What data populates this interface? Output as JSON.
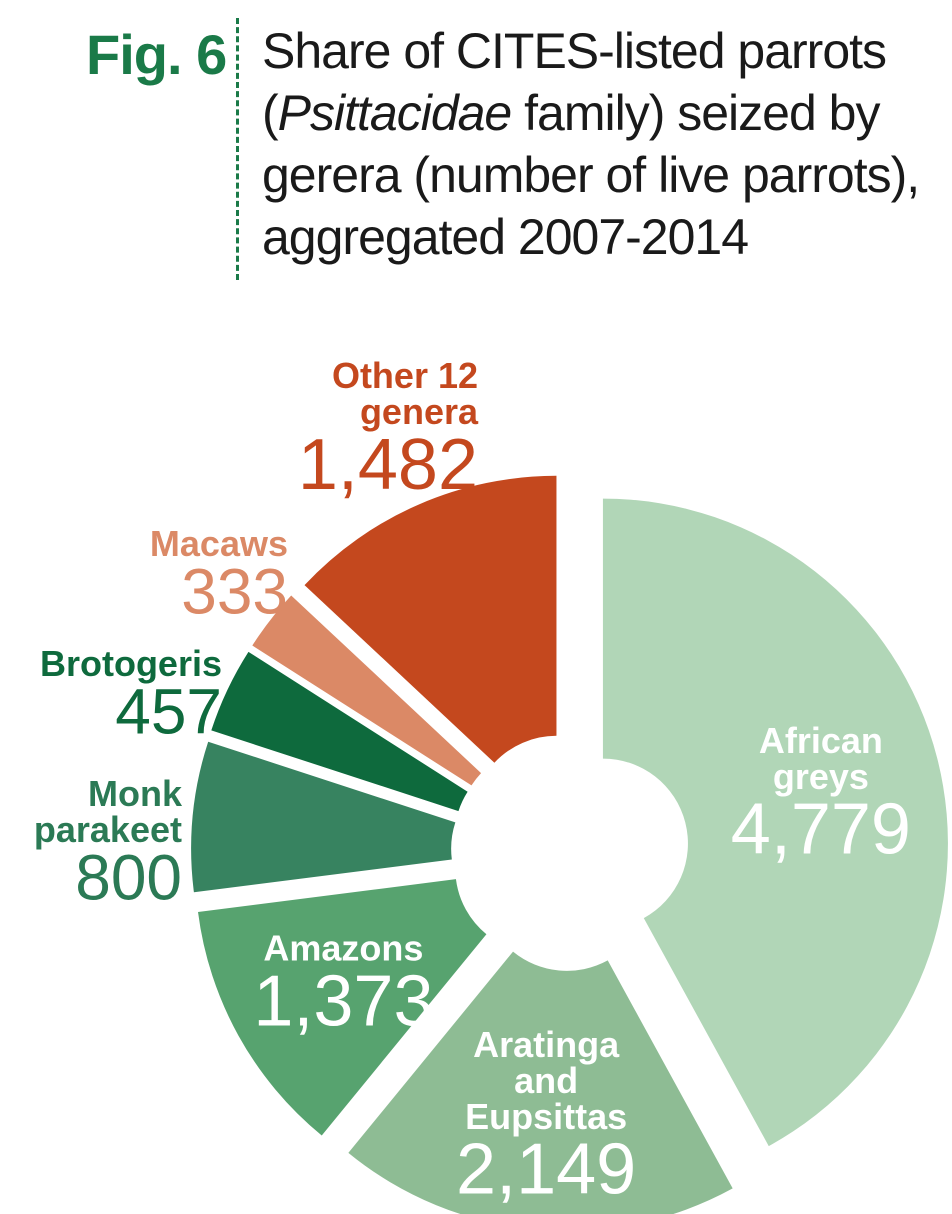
{
  "figure": {
    "label": "Fig. 6",
    "title_part1": "Share of CITES-listed parrots (",
    "title_italic": "Psittacidae",
    "title_part2": " family) seized by gerera (number of live parrots), aggregated 2007-2014"
  },
  "chart_data": {
    "type": "pie",
    "style": "donut, exploded segments",
    "title": "Share of CITES-listed parrots (Psittacidae family) seized by gerera (number of live parrots), aggregated 2007-2014",
    "slices": [
      {
        "name": "African greys",
        "label_lines": [
          "African",
          "greys"
        ],
        "value": 4779,
        "value_text": "4,779",
        "color": "#b1d6b7",
        "label_color": "#ffffff"
      },
      {
        "name": "Aratinga and Eupsittas",
        "label_lines": [
          "Aratinga",
          "and",
          "Eupsittas"
        ],
        "value": 2149,
        "value_text": "2,149",
        "color": "#8ebc94",
        "label_color": "#ffffff"
      },
      {
        "name": "Amazons",
        "label_lines": [
          "Amazons"
        ],
        "value": 1373,
        "value_text": "1,373",
        "color": "#57a36f",
        "label_color": "#ffffff"
      },
      {
        "name": "Monk parakeet",
        "label_lines": [
          "Monk",
          "parakeet"
        ],
        "value": 800,
        "value_text": "800",
        "color": "#378360",
        "label_color": "#2b7a55"
      },
      {
        "name": "Brotogeris",
        "label_lines": [
          "Brotogeris"
        ],
        "value": 457,
        "value_text": "457",
        "color": "#0e6a3d",
        "label_color": "#0e6a3d"
      },
      {
        "name": "Macaws",
        "label_lines": [
          "Macaws"
        ],
        "value": 333,
        "value_text": "333",
        "color": "#db8966",
        "label_color": "#db8966"
      },
      {
        "name": "Other 12 genera",
        "label_lines": [
          "Other 12",
          "genera"
        ],
        "value": 1482,
        "value_text": "1,482",
        "color": "#c4481e",
        "label_color": "#c4481e"
      }
    ]
  }
}
